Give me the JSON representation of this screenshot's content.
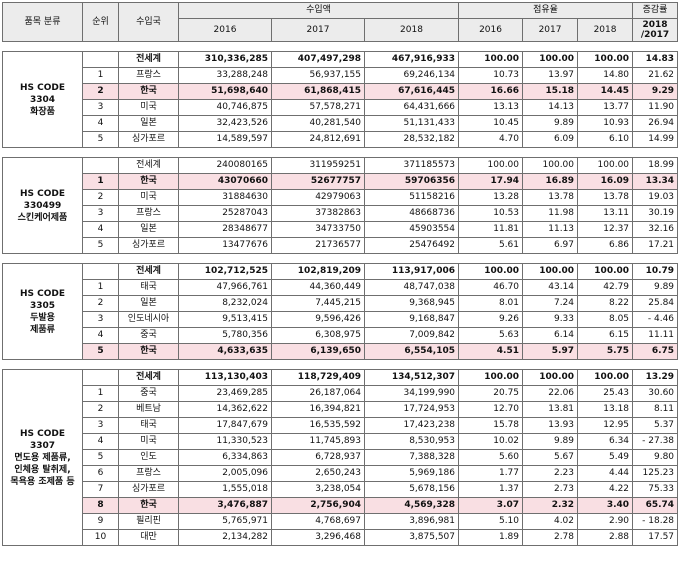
{
  "header": {
    "category": "품목 분류",
    "rank": "순위",
    "importer": "수입국",
    "import_amount": "수입액",
    "share": "점유율",
    "growth": "증감률",
    "years": [
      "2016",
      "2017",
      "2018"
    ],
    "growth_sub": "2018 /2017"
  },
  "groups": [
    {
      "category": "HS CODE\n3304\n화장품",
      "rows": [
        {
          "rank": "",
          "country": "전세계",
          "v2016": "310,336,285",
          "v2017": "407,497,298",
          "v2018": "467,916,933",
          "s2016": "100.00",
          "s2017": "100.00",
          "s2018": "100.00",
          "growth": "14.83",
          "bold": true
        },
        {
          "rank": "1",
          "country": "프랑스",
          "v2016": "33,288,248",
          "v2017": "56,937,155",
          "v2018": "69,246,134",
          "s2016": "10.73",
          "s2017": "13.97",
          "s2018": "14.80",
          "growth": "21.62"
        },
        {
          "rank": "2",
          "country": "한국",
          "v2016": "51,698,640",
          "v2017": "61,868,415",
          "v2018": "67,616,445",
          "s2016": "16.66",
          "s2017": "15.18",
          "s2018": "14.45",
          "growth": "9.29",
          "highlight": true,
          "bold": true
        },
        {
          "rank": "3",
          "country": "미국",
          "v2016": "40,746,875",
          "v2017": "57,578,271",
          "v2018": "64,431,666",
          "s2016": "13.13",
          "s2017": "14.13",
          "s2018": "13.77",
          "growth": "11.90"
        },
        {
          "rank": "4",
          "country": "일본",
          "v2016": "32,423,526",
          "v2017": "40,281,540",
          "v2018": "51,131,433",
          "s2016": "10.45",
          "s2017": "9.89",
          "s2018": "10.93",
          "growth": "26.94"
        },
        {
          "rank": "5",
          "country": "싱가포르",
          "v2016": "14,589,597",
          "v2017": "24,812,691",
          "v2018": "28,532,182",
          "s2016": "4.70",
          "s2017": "6.09",
          "s2018": "6.10",
          "growth": "14.99"
        }
      ]
    },
    {
      "category": "HS CODE\n330499\n스킨케어제품",
      "rows": [
        {
          "rank": "",
          "country": "전세계",
          "v2016": "240080165",
          "v2017": "311959251",
          "v2018": "371185573",
          "s2016": "100.00",
          "s2017": "100.00",
          "s2018": "100.00",
          "growth": "18.99"
        },
        {
          "rank": "1",
          "country": "한국",
          "v2016": "43070660",
          "v2017": "52677757",
          "v2018": "59706356",
          "s2016": "17.94",
          "s2017": "16.89",
          "s2018": "16.09",
          "growth": "13.34",
          "highlight": true,
          "bold": true
        },
        {
          "rank": "2",
          "country": "미국",
          "v2016": "31884630",
          "v2017": "42979063",
          "v2018": "51158216",
          "s2016": "13.28",
          "s2017": "13.78",
          "s2018": "13.78",
          "growth": "19.03"
        },
        {
          "rank": "3",
          "country": "프랑스",
          "v2016": "25287043",
          "v2017": "37382863",
          "v2018": "48668736",
          "s2016": "10.53",
          "s2017": "11.98",
          "s2018": "13.11",
          "growth": "30.19"
        },
        {
          "rank": "4",
          "country": "일본",
          "v2016": "28348677",
          "v2017": "34733750",
          "v2018": "45903554",
          "s2016": "11.81",
          "s2017": "11.13",
          "s2018": "12.37",
          "growth": "32.16"
        },
        {
          "rank": "5",
          "country": "싱가포르",
          "v2016": "13477676",
          "v2017": "21736577",
          "v2018": "25476492",
          "s2016": "5.61",
          "s2017": "6.97",
          "s2018": "6.86",
          "growth": "17.21"
        }
      ]
    },
    {
      "category": "HS CODE\n3305\n두발용\n제품류",
      "rows": [
        {
          "rank": "",
          "country": "전세계",
          "v2016": "102,712,525",
          "v2017": "102,819,209",
          "v2018": "113,917,006",
          "s2016": "100.00",
          "s2017": "100.00",
          "s2018": "100.00",
          "growth": "10.79",
          "bold": true
        },
        {
          "rank": "1",
          "country": "태국",
          "v2016": "47,966,761",
          "v2017": "44,360,449",
          "v2018": "48,747,038",
          "s2016": "46.70",
          "s2017": "43.14",
          "s2018": "42.79",
          "growth": "9.89"
        },
        {
          "rank": "2",
          "country": "일본",
          "v2016": "8,232,024",
          "v2017": "7,445,215",
          "v2018": "9,368,945",
          "s2016": "8.01",
          "s2017": "7.24",
          "s2018": "8.22",
          "growth": "25.84"
        },
        {
          "rank": "3",
          "country": "인도네시아",
          "v2016": "9,513,415",
          "v2017": "9,596,426",
          "v2018": "9,168,847",
          "s2016": "9.26",
          "s2017": "9.33",
          "s2018": "8.05",
          "growth": "- 4.46"
        },
        {
          "rank": "4",
          "country": "중국",
          "v2016": "5,780,356",
          "v2017": "6,308,975",
          "v2018": "7,009,842",
          "s2016": "5.63",
          "s2017": "6.14",
          "s2018": "6.15",
          "growth": "11.11"
        },
        {
          "rank": "5",
          "country": "한국",
          "v2016": "4,633,635",
          "v2017": "6,139,650",
          "v2018": "6,554,105",
          "s2016": "4.51",
          "s2017": "5.97",
          "s2018": "5.75",
          "growth": "6.75",
          "highlight": true,
          "bold": true
        }
      ]
    },
    {
      "category": "HS CODE\n3307\n면도용 제품류,\n인체용 탈취제,\n목욕용 조제품 등",
      "rows": [
        {
          "rank": "",
          "country": "전세계",
          "v2016": "113,130,403",
          "v2017": "118,729,409",
          "v2018": "134,512,307",
          "s2016": "100.00",
          "s2017": "100.00",
          "s2018": "100.00",
          "growth": "13.29",
          "bold": true
        },
        {
          "rank": "1",
          "country": "중국",
          "v2016": "23,469,285",
          "v2017": "26,187,064",
          "v2018": "34,199,990",
          "s2016": "20.75",
          "s2017": "22.06",
          "s2018": "25.43",
          "growth": "30.60"
        },
        {
          "rank": "2",
          "country": "베트남",
          "v2016": "14,362,622",
          "v2017": "16,394,821",
          "v2018": "17,724,953",
          "s2016": "12.70",
          "s2017": "13.81",
          "s2018": "13.18",
          "growth": "8.11"
        },
        {
          "rank": "3",
          "country": "태국",
          "v2016": "17,847,679",
          "v2017": "16,535,592",
          "v2018": "17,423,238",
          "s2016": "15.78",
          "s2017": "13.93",
          "s2018": "12.95",
          "growth": "5.37"
        },
        {
          "rank": "4",
          "country": "미국",
          "v2016": "11,330,523",
          "v2017": "11,745,893",
          "v2018": "8,530,953",
          "s2016": "10.02",
          "s2017": "9.89",
          "s2018": "6.34",
          "growth": "- 27.38"
        },
        {
          "rank": "5",
          "country": "인도",
          "v2016": "6,334,863",
          "v2017": "6,728,937",
          "v2018": "7,388,328",
          "s2016": "5.60",
          "s2017": "5.67",
          "s2018": "5.49",
          "growth": "9.80"
        },
        {
          "rank": "6",
          "country": "프랑스",
          "v2016": "2,005,096",
          "v2017": "2,650,243",
          "v2018": "5,969,186",
          "s2016": "1.77",
          "s2017": "2.23",
          "s2018": "4.44",
          "growth": "125.23"
        },
        {
          "rank": "7",
          "country": "싱가포르",
          "v2016": "1,555,018",
          "v2017": "3,238,054",
          "v2018": "5,678,156",
          "s2016": "1.37",
          "s2017": "2.73",
          "s2018": "4.22",
          "growth": "75.33"
        },
        {
          "rank": "8",
          "country": "한국",
          "v2016": "3,476,887",
          "v2017": "2,756,904",
          "v2018": "4,569,328",
          "s2016": "3.07",
          "s2017": "2.32",
          "s2018": "3.40",
          "growth": "65.74",
          "highlight": true,
          "bold": true
        },
        {
          "rank": "9",
          "country": "필리핀",
          "v2016": "5,765,971",
          "v2017": "4,768,697",
          "v2018": "3,896,981",
          "s2016": "5.10",
          "s2017": "4.02",
          "s2018": "2.90",
          "growth": "- 18.28"
        },
        {
          "rank": "10",
          "country": "대만",
          "v2016": "2,134,282",
          "v2017": "3,296,468",
          "v2018": "3,875,507",
          "s2016": "1.89",
          "s2017": "2.78",
          "s2018": "2.88",
          "growth": "17.57"
        }
      ]
    }
  ]
}
